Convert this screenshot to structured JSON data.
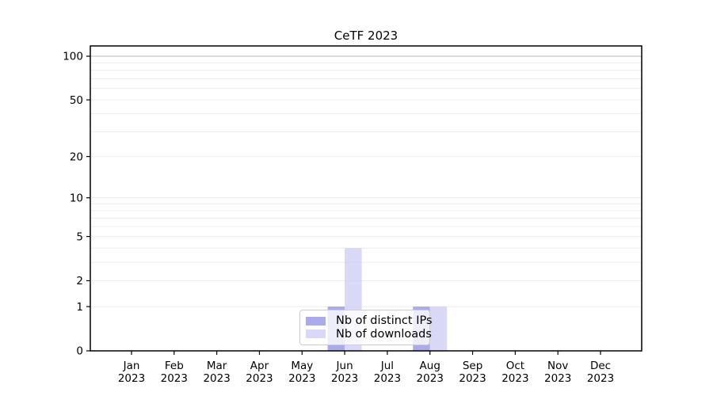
{
  "chart_data": {
    "type": "bar",
    "title": "CeTF 2023",
    "categories": [
      "Jan",
      "Feb",
      "Mar",
      "Apr",
      "May",
      "Jun",
      "Jul",
      "Aug",
      "Sep",
      "Oct",
      "Nov",
      "Dec"
    ],
    "category_year": "2023",
    "series": [
      {
        "name": "Nb of distinct IPs",
        "color": "#9696e4",
        "values": [
          0,
          0,
          0,
          0,
          0,
          1,
          0,
          1,
          0,
          0,
          0,
          0
        ]
      },
      {
        "name": "Nb of downloads",
        "color": "#d0d0f5",
        "values": [
          0,
          0,
          0,
          0,
          0,
          4,
          0,
          1,
          0,
          0,
          0,
          0
        ]
      }
    ],
    "yscale": "log1p",
    "ylim": [
      0,
      117
    ],
    "yticks": [
      0,
      1,
      2,
      5,
      10,
      20,
      50,
      100
    ],
    "grid_minor_values": [
      1,
      2,
      3,
      4,
      5,
      6,
      7,
      8,
      9,
      10,
      20,
      30,
      40,
      50,
      60,
      70,
      80,
      90
    ],
    "grid_top_value": 100,
    "grid": true,
    "legend_position": "inside-bottom-center",
    "colors": {
      "axis": "#000000",
      "tick_label": "#000000",
      "grid_minor": "#ececec",
      "grid_top": "#c6c6c6",
      "background": "#ffffff"
    }
  }
}
